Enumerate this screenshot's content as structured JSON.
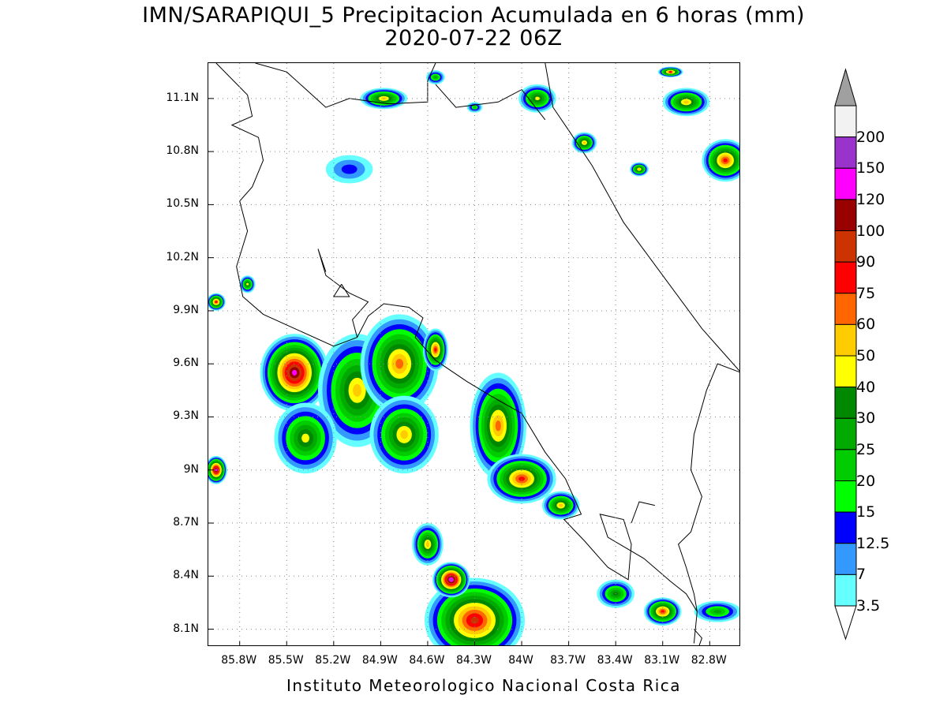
{
  "title": {
    "line1": "IMN/SARAPIQUI_5 Precipitacion Acumulada en 6 horas (mm)",
    "line2": "2020-07-22 06Z"
  },
  "footer": "Instituto Meteorologico Nacional Costa Rica",
  "map": {
    "lat_range": [
      8.0,
      11.3
    ],
    "lon_range": [
      -86.0,
      -82.6
    ],
    "lat_ticks": [
      {
        "value": 8.1,
        "label": "8.1N"
      },
      {
        "value": 8.4,
        "label": "8.4N"
      },
      {
        "value": 8.7,
        "label": "8.7N"
      },
      {
        "value": 9.0,
        "label": "9N"
      },
      {
        "value": 9.3,
        "label": "9.3N"
      },
      {
        "value": 9.6,
        "label": "9.6N"
      },
      {
        "value": 9.9,
        "label": "9.9N"
      },
      {
        "value": 10.2,
        "label": "10.2N"
      },
      {
        "value": 10.5,
        "label": "10.5N"
      },
      {
        "value": 10.8,
        "label": "10.8N"
      },
      {
        "value": 11.1,
        "label": "11.1N"
      }
    ],
    "lon_ticks": [
      {
        "value": -85.8,
        "label": "85.8W"
      },
      {
        "value": -85.5,
        "label": "85.5W"
      },
      {
        "value": -85.2,
        "label": "85.2W"
      },
      {
        "value": -84.9,
        "label": "84.9W"
      },
      {
        "value": -84.6,
        "label": "84.6W"
      },
      {
        "value": -84.3,
        "label": "84.3W"
      },
      {
        "value": -84.0,
        "label": "84W"
      },
      {
        "value": -83.7,
        "label": "83.7W"
      },
      {
        "value": -83.4,
        "label": "83.4W"
      },
      {
        "value": -83.1,
        "label": "83.1W"
      },
      {
        "value": -82.8,
        "label": "82.8W"
      }
    ],
    "grid": "dotted"
  },
  "colorbar": {
    "levels": [
      {
        "label": "3.5",
        "color": "#66ffff"
      },
      {
        "label": "7",
        "color": "#3399ff"
      },
      {
        "label": "12.5",
        "color": "#0000ff"
      },
      {
        "label": "15",
        "color": "#00ff00"
      },
      {
        "label": "20",
        "color": "#00cc00"
      },
      {
        "label": "25",
        "color": "#00aa00"
      },
      {
        "label": "30",
        "color": "#008800"
      },
      {
        "label": "40",
        "color": "#ffff00"
      },
      {
        "label": "50",
        "color": "#ffcc00"
      },
      {
        "label": "60",
        "color": "#ff6600"
      },
      {
        "label": "75",
        "color": "#ff0000"
      },
      {
        "label": "90",
        "color": "#cc3300"
      },
      {
        "label": "100",
        "color": "#990000"
      },
      {
        "label": "120",
        "color": "#ff00ff"
      },
      {
        "label": "150",
        "color": "#9933cc"
      },
      {
        "label": "200",
        "color": "#f2f2f2"
      }
    ],
    "over_color": "#a0a0a0",
    "under_color": "#ffffff"
  },
  "rain_cells": [
    {
      "lon": -85.45,
      "lat": 9.55,
      "rx": 0.22,
      "ry": 0.22,
      "level": 13
    },
    {
      "lon": -85.05,
      "lat": 9.45,
      "rx": 0.25,
      "ry": 0.32,
      "level": 8
    },
    {
      "lon": -84.78,
      "lat": 9.6,
      "rx": 0.25,
      "ry": 0.28,
      "level": 9
    },
    {
      "lon": -85.38,
      "lat": 9.18,
      "rx": 0.2,
      "ry": 0.2,
      "level": 7
    },
    {
      "lon": -84.75,
      "lat": 9.2,
      "rx": 0.22,
      "ry": 0.22,
      "level": 8
    },
    {
      "lon": -84.55,
      "lat": 9.68,
      "rx": 0.08,
      "ry": 0.12,
      "level": 10
    },
    {
      "lon": -84.15,
      "lat": 9.25,
      "rx": 0.18,
      "ry": 0.3,
      "level": 9
    },
    {
      "lon": -84.0,
      "lat": 8.95,
      "rx": 0.22,
      "ry": 0.14,
      "level": 10
    },
    {
      "lon": -83.75,
      "lat": 8.8,
      "rx": 0.12,
      "ry": 0.08,
      "level": 8
    },
    {
      "lon": -84.3,
      "lat": 8.15,
      "rx": 0.32,
      "ry": 0.24,
      "level": 11
    },
    {
      "lon": -84.45,
      "lat": 8.38,
      "rx": 0.12,
      "ry": 0.1,
      "level": 14
    },
    {
      "lon": -84.6,
      "lat": 8.58,
      "rx": 0.1,
      "ry": 0.12,
      "level": 8
    },
    {
      "lon": -85.95,
      "lat": 9.0,
      "rx": 0.07,
      "ry": 0.08,
      "level": 13
    },
    {
      "lon": -85.95,
      "lat": 9.95,
      "rx": 0.06,
      "ry": 0.05,
      "level": 10
    },
    {
      "lon": -85.75,
      "lat": 10.05,
      "rx": 0.05,
      "ry": 0.05,
      "level": 7
    },
    {
      "lon": -84.88,
      "lat": 11.1,
      "rx": 0.15,
      "ry": 0.06,
      "level": 8
    },
    {
      "lon": -84.55,
      "lat": 11.22,
      "rx": 0.06,
      "ry": 0.04,
      "level": 5
    },
    {
      "lon": -84.3,
      "lat": 11.05,
      "rx": 0.05,
      "ry": 0.03,
      "level": 4
    },
    {
      "lon": -83.9,
      "lat": 11.1,
      "rx": 0.12,
      "ry": 0.08,
      "level": 7
    },
    {
      "lon": -83.6,
      "lat": 10.85,
      "rx": 0.08,
      "ry": 0.06,
      "level": 8
    },
    {
      "lon": -83.05,
      "lat": 11.25,
      "rx": 0.08,
      "ry": 0.03,
      "level": 10
    },
    {
      "lon": -82.95,
      "lat": 11.08,
      "rx": 0.15,
      "ry": 0.08,
      "level": 8
    },
    {
      "lon": -82.7,
      "lat": 10.75,
      "rx": 0.15,
      "ry": 0.12,
      "level": 10
    },
    {
      "lon": -83.25,
      "lat": 10.7,
      "rx": 0.06,
      "ry": 0.04,
      "level": 8
    },
    {
      "lon": -83.1,
      "lat": 8.2,
      "rx": 0.12,
      "ry": 0.08,
      "level": 10
    },
    {
      "lon": -82.75,
      "lat": 8.2,
      "rx": 0.15,
      "ry": 0.06,
      "level": 5
    },
    {
      "lon": -83.4,
      "lat": 8.3,
      "rx": 0.12,
      "ry": 0.08,
      "level": 6
    },
    {
      "lon": -85.1,
      "lat": 10.7,
      "rx": 0.15,
      "ry": 0.08,
      "level": 2
    }
  ],
  "coastlines": [
    [
      [
        -85.95,
        11.3
      ],
      [
        -85.75,
        11.12
      ],
      [
        -85.72,
        11.0
      ],
      [
        -85.85,
        10.95
      ],
      [
        -85.68,
        10.88
      ],
      [
        -85.65,
        10.75
      ],
      [
        -85.72,
        10.6
      ],
      [
        -85.8,
        10.52
      ],
      [
        -85.75,
        10.35
      ],
      [
        -85.82,
        10.15
      ],
      [
        -85.78,
        9.98
      ],
      [
        -85.65,
        9.88
      ],
      [
        -85.45,
        9.8
      ],
      [
        -85.2,
        9.7
      ],
      [
        -85.05,
        9.75
      ],
      [
        -84.98,
        9.87
      ],
      [
        -84.88,
        9.94
      ],
      [
        -84.72,
        9.92
      ],
      [
        -84.63,
        9.86
      ],
      [
        -84.68,
        9.75
      ],
      [
        -84.55,
        9.62
      ],
      [
        -84.35,
        9.5
      ],
      [
        -84.2,
        9.42
      ],
      [
        -84.0,
        9.32
      ],
      [
        -83.85,
        9.1
      ],
      [
        -83.72,
        8.95
      ],
      [
        -83.62,
        8.75
      ],
      [
        -83.73,
        8.72
      ],
      [
        -83.6,
        8.6
      ],
      [
        -83.45,
        8.45
      ],
      [
        -83.32,
        8.38
      ],
      [
        -83.3,
        8.58
      ],
      [
        -83.35,
        8.72
      ],
      [
        -83.5,
        8.75
      ],
      [
        -83.45,
        8.62
      ],
      [
        -83.22,
        8.5
      ],
      [
        -83.05,
        8.37
      ],
      [
        -82.95,
        8.3
      ],
      [
        -82.88,
        8.2
      ],
      [
        -82.9,
        8.02
      ]
    ],
    [
      [
        -85.05,
        9.75
      ],
      [
        -85.08,
        9.85
      ],
      [
        -84.98,
        9.95
      ],
      [
        -85.1,
        10.0
      ],
      [
        -85.25,
        10.1
      ],
      [
        -85.3,
        10.25
      ],
      [
        -85.25,
        10.12
      ]
    ],
    [
      [
        -85.15,
        10.05
      ],
      [
        -85.1,
        9.98
      ],
      [
        -85.2,
        9.98
      ],
      [
        -85.15,
        10.05
      ]
    ],
    [
      [
        -84.55,
        11.3
      ],
      [
        -84.6,
        11.2
      ],
      [
        -84.6,
        11.08
      ],
      [
        -84.85,
        11.07
      ],
      [
        -85.1,
        11.1
      ],
      [
        -85.25,
        11.05
      ],
      [
        -85.5,
        11.25
      ],
      [
        -85.7,
        11.3
      ]
    ],
    [
      [
        -84.55,
        11.18
      ],
      [
        -84.42,
        11.05
      ],
      [
        -84.15,
        11.08
      ],
      [
        -84.0,
        11.15
      ],
      [
        -83.85,
        10.98
      ]
    ],
    [
      [
        -83.85,
        11.3
      ],
      [
        -83.8,
        11.05
      ],
      [
        -83.7,
        10.92
      ],
      [
        -83.55,
        10.72
      ],
      [
        -83.35,
        10.4
      ],
      [
        -83.1,
        10.1
      ],
      [
        -82.85,
        9.8
      ],
      [
        -82.7,
        9.65
      ],
      [
        -82.6,
        9.55
      ]
    ],
    [
      [
        -82.6,
        9.55
      ],
      [
        -82.75,
        9.6
      ],
      [
        -82.82,
        9.45
      ],
      [
        -82.9,
        9.2
      ],
      [
        -82.92,
        9.0
      ],
      [
        -82.85,
        8.85
      ],
      [
        -82.92,
        8.65
      ],
      [
        -83.0,
        8.58
      ],
      [
        -82.95,
        8.45
      ],
      [
        -82.9,
        8.3
      ],
      [
        -82.88,
        8.2
      ]
    ],
    [
      [
        -83.15,
        8.8
      ],
      [
        -83.25,
        8.82
      ],
      [
        -83.3,
        8.7
      ]
    ],
    [
      [
        -82.9,
        8.1
      ],
      [
        -82.85,
        8.05
      ],
      [
        -82.87,
        8.0
      ]
    ]
  ]
}
